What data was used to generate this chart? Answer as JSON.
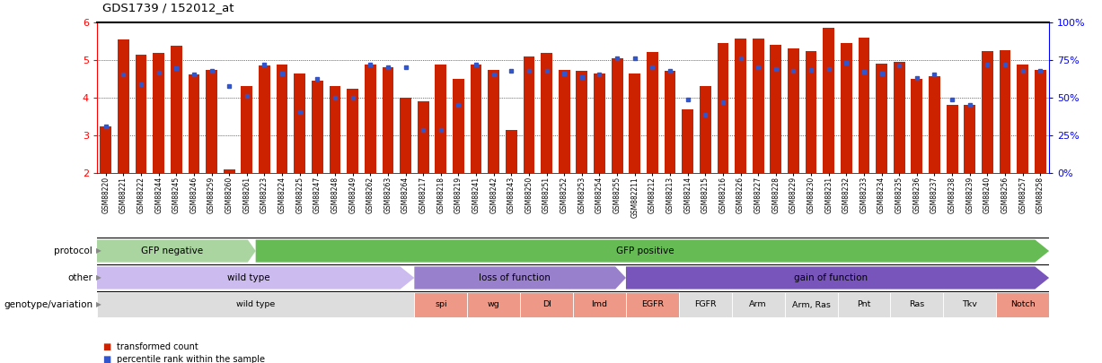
{
  "title": "GDS1739 / 152012_at",
  "samples": [
    "GSM88220",
    "GSM88221",
    "GSM88222",
    "GSM88244",
    "GSM88245",
    "GSM88246",
    "GSM88259",
    "GSM88260",
    "GSM88261",
    "GSM88223",
    "GSM88224",
    "GSM88225",
    "GSM88247",
    "GSM88248",
    "GSM88249",
    "GSM88262",
    "GSM88263",
    "GSM88264",
    "GSM88217",
    "GSM88218",
    "GSM88219",
    "GSM88241",
    "GSM88242",
    "GSM88243",
    "GSM88250",
    "GSM88251",
    "GSM88252",
    "GSM88253",
    "GSM88254",
    "GSM88255",
    "GSM882211",
    "GSM88212",
    "GSM88213",
    "GSM88214",
    "GSM88215",
    "GSM88216",
    "GSM88226",
    "GSM88227",
    "GSM88228",
    "GSM88229",
    "GSM88230",
    "GSM88231",
    "GSM88232",
    "GSM88233",
    "GSM88234",
    "GSM88235",
    "GSM88236",
    "GSM88237",
    "GSM88238",
    "GSM88239",
    "GSM88240",
    "GSM88256",
    "GSM88257",
    "GSM88258"
  ],
  "bar_values": [
    3.25,
    5.55,
    5.15,
    5.2,
    5.37,
    4.62,
    4.75,
    2.1,
    4.3,
    4.85,
    4.87,
    4.65,
    4.45,
    4.3,
    4.25,
    4.88,
    4.82,
    4.0,
    3.9,
    4.88,
    4.5,
    4.87,
    4.75,
    3.15,
    5.1,
    5.2,
    4.75,
    4.72,
    4.65,
    5.05,
    4.65,
    5.22,
    4.72,
    3.7,
    4.3,
    5.45,
    5.57,
    5.58,
    5.4,
    5.3,
    5.25,
    5.85,
    5.45,
    5.6,
    4.9,
    4.95,
    4.5,
    4.57,
    3.82,
    3.82,
    5.25,
    5.27,
    4.88,
    4.75
  ],
  "dot_values": [
    3.25,
    4.62,
    4.35,
    4.67,
    4.78,
    4.62,
    4.72,
    4.32,
    4.05,
    4.87,
    4.65,
    3.62,
    4.5,
    4.0,
    4.0,
    4.88,
    4.82,
    4.82,
    3.15,
    3.15,
    3.82,
    4.87,
    4.62,
    4.72,
    4.72,
    4.72,
    4.65,
    4.55,
    4.62,
    5.05,
    5.05,
    4.82,
    4.72,
    3.95,
    3.55,
    3.87,
    5.05,
    4.82,
    4.77,
    4.72,
    4.75,
    4.77,
    4.92,
    4.7,
    4.65,
    4.85,
    4.52,
    4.62,
    3.95,
    3.82,
    4.87,
    4.88,
    4.72,
    4.72
  ],
  "bar_color": "#cc2200",
  "dot_color": "#3355cc",
  "ylim": [
    2.0,
    6.0
  ],
  "yticks": [
    2,
    3,
    4,
    5,
    6
  ],
  "y2ticks": [
    0,
    25,
    50,
    75,
    100
  ],
  "y2labels": [
    "0%",
    "25%",
    "50%",
    "75%",
    "100%"
  ],
  "protocol_sections": [
    {
      "label": "GFP negative",
      "start": 0,
      "end": 9,
      "color": "#aad4a0"
    },
    {
      "label": "GFP positive",
      "start": 9,
      "end": 54,
      "color": "#66bb55"
    }
  ],
  "other_sections": [
    {
      "label": "wild type",
      "start": 0,
      "end": 18,
      "color": "#ccbbee"
    },
    {
      "label": "loss of function",
      "start": 18,
      "end": 30,
      "color": "#9980cc"
    },
    {
      "label": "gain of function",
      "start": 30,
      "end": 54,
      "color": "#7755bb"
    }
  ],
  "genotype_sections": [
    {
      "label": "wild type",
      "start": 0,
      "end": 18,
      "color": "#dddddd"
    },
    {
      "label": "spi",
      "start": 18,
      "end": 21,
      "color": "#ee9988"
    },
    {
      "label": "wg",
      "start": 21,
      "end": 24,
      "color": "#ee9988"
    },
    {
      "label": "Dl",
      "start": 24,
      "end": 27,
      "color": "#ee9988"
    },
    {
      "label": "Imd",
      "start": 27,
      "end": 30,
      "color": "#ee9988"
    },
    {
      "label": "EGFR",
      "start": 30,
      "end": 33,
      "color": "#ee9988"
    },
    {
      "label": "FGFR",
      "start": 33,
      "end": 36,
      "color": "#dddddd"
    },
    {
      "label": "Arm",
      "start": 36,
      "end": 39,
      "color": "#dddddd"
    },
    {
      "label": "Arm, Ras",
      "start": 39,
      "end": 42,
      "color": "#dddddd"
    },
    {
      "label": "Pnt",
      "start": 42,
      "end": 45,
      "color": "#dddddd"
    },
    {
      "label": "Ras",
      "start": 45,
      "end": 48,
      "color": "#dddddd"
    },
    {
      "label": "Tkv",
      "start": 48,
      "end": 51,
      "color": "#dddddd"
    },
    {
      "label": "Notch",
      "start": 51,
      "end": 54,
      "color": "#ee9988"
    }
  ],
  "legend_items": [
    {
      "color": "#cc2200",
      "label": "transformed count"
    },
    {
      "color": "#3355cc",
      "label": "percentile rank within the sample"
    }
  ]
}
